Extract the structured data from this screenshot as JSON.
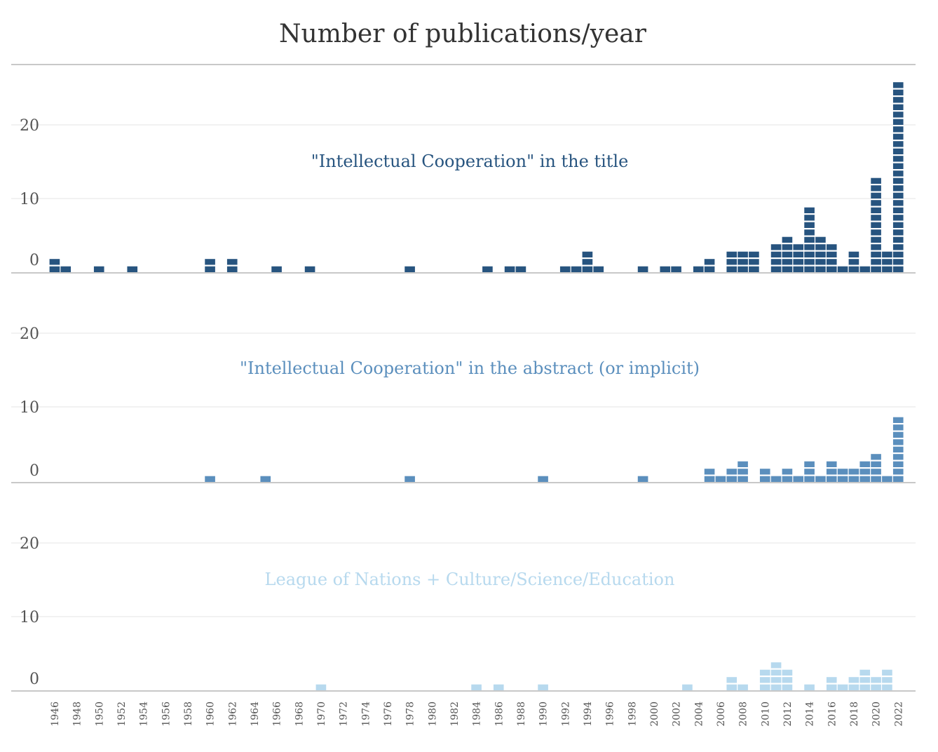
{
  "chart_data": {
    "type": "bar",
    "title": "Number of publications/year",
    "x": {
      "start_year": 1946,
      "end_year": 2023,
      "tick_labels": [
        "1946",
        "1948",
        "1950",
        "1952",
        "1954",
        "1956",
        "1958",
        "1960",
        "1962",
        "1964",
        "1966",
        "1968",
        "1970",
        "1972",
        "1974",
        "1976",
        "1978",
        "1980",
        "1982",
        "1984",
        "1986",
        "1988",
        "1990",
        "1992",
        "1994",
        "1996",
        "1998",
        "2000",
        "2002",
        "2004",
        "2006",
        "2008",
        "2010",
        "2012",
        "2014",
        "2016",
        "2018",
        "2020",
        "2022"
      ]
    },
    "y": {
      "ylim": [
        0,
        24
      ],
      "tick_labels": [
        "0",
        "10",
        "20"
      ]
    },
    "grid": true,
    "series": [
      {
        "name": "\"Intellectual Cooperation\" in the title",
        "color": "#27547f",
        "values": {
          "1946": 2,
          "1947": 1,
          "1950": 1,
          "1953": 1,
          "1960": 2,
          "1962": 2,
          "1966": 1,
          "1969": 1,
          "1978": 1,
          "1985": 1,
          "1987": 1,
          "1988": 1,
          "1992": 1,
          "1993": 1,
          "1994": 3,
          "1995": 1,
          "1999": 1,
          "2001": 1,
          "2002": 1,
          "2004": 1,
          "2005": 2,
          "2007": 3,
          "2008": 3,
          "2009": 3,
          "2011": 4,
          "2012": 5,
          "2013": 4,
          "2014": 9,
          "2015": 5,
          "2016": 4,
          "2017": 1,
          "2018": 3,
          "2019": 1,
          "2020": 13,
          "2021": 3,
          "2022": 26
        }
      },
      {
        "name": "\"Intellectual Cooperation\" in the abstract (or implicit)",
        "color": "#5b8fbd",
        "values": {
          "1960": 1,
          "1965": 1,
          "1978": 1,
          "1990": 1,
          "1999": 1,
          "2005": 2,
          "2006": 1,
          "2007": 2,
          "2008": 3,
          "2010": 2,
          "2011": 1,
          "2012": 2,
          "2013": 1,
          "2014": 3,
          "2015": 1,
          "2016": 3,
          "2017": 2,
          "2018": 2,
          "2019": 3,
          "2020": 4,
          "2021": 1,
          "2022": 9
        }
      },
      {
        "name": "League of Nations + Culture/Science/Education",
        "color": "#b7d9ee",
        "values": {
          "1970": 1,
          "1984": 1,
          "1986": 1,
          "1990": 1,
          "2003": 1,
          "2007": 2,
          "2008": 1,
          "2010": 3,
          "2011": 4,
          "2012": 3,
          "2014": 1,
          "2016": 2,
          "2017": 1,
          "2018": 2,
          "2019": 3,
          "2020": 2,
          "2021": 3
        }
      }
    ]
  }
}
